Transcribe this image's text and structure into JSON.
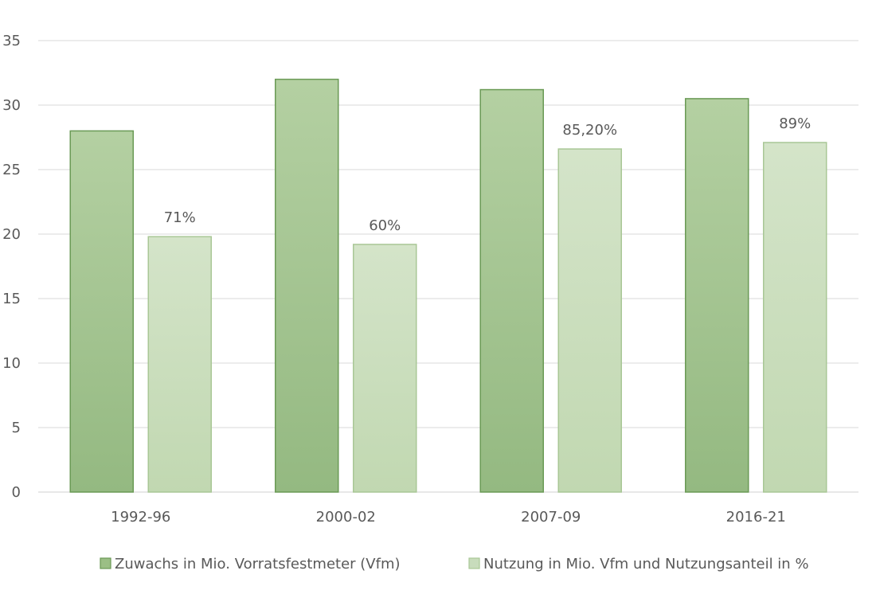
{
  "chart_data": {
    "type": "bar",
    "categories": [
      "1992-96",
      "2000-02",
      "2007-09",
      "2016-21"
    ],
    "series": [
      {
        "name": "Zuwachs in Mio. Vorratsfestmeter (Vfm)",
        "values": [
          28.0,
          32.0,
          31.2,
          30.5
        ],
        "color": "#9bbf85",
        "labels": []
      },
      {
        "name": "Nutzung in Mio. Vfm und Nutzungsanteil in %",
        "values": [
          19.8,
          19.2,
          26.6,
          27.1
        ],
        "color": "#c8dcbc",
        "labels": [
          "71%",
          "60%",
          "85,20%",
          "89%"
        ]
      }
    ],
    "ylim": [
      0,
      35
    ],
    "yticks": [
      0,
      5,
      10,
      15,
      20,
      25,
      30,
      35
    ],
    "grid": true,
    "legend": "bottom",
    "title": "",
    "xlabel": "",
    "ylabel": ""
  }
}
